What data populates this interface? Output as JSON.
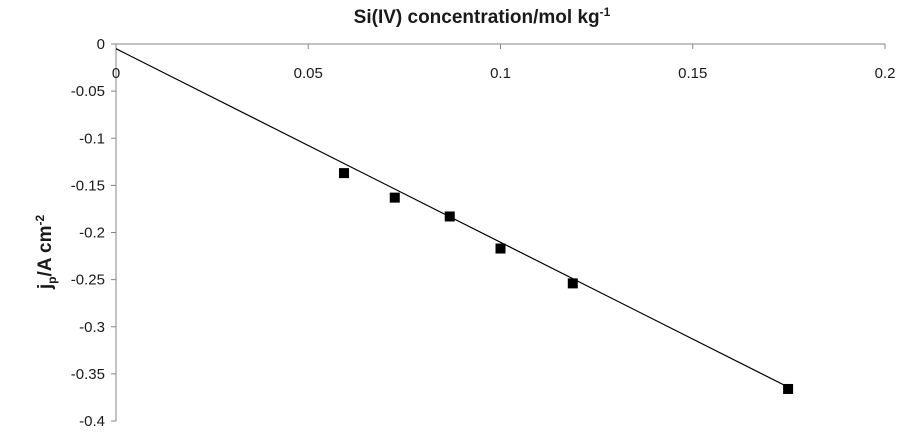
{
  "chart_data": {
    "type": "scatter",
    "title": "",
    "xlabel": {
      "main": "Si(IV) concentration/mol kg",
      "sup": "-1"
    },
    "ylabel": {
      "pre": "j",
      "sub": "p",
      "mid": "/A cm",
      "sup": "-2"
    },
    "xlim": [
      0,
      0.2
    ],
    "ylim": [
      -0.4,
      0
    ],
    "x_axis_position": "top",
    "x_ticks": [
      0,
      0.05,
      0.1,
      0.15,
      0.2
    ],
    "x_tick_labels": [
      "0",
      "0.05",
      "0.1",
      "0.15",
      "0.2"
    ],
    "y_ticks": [
      0,
      -0.05,
      -0.1,
      -0.15,
      -0.2,
      -0.25,
      -0.3,
      -0.35,
      -0.4
    ],
    "y_tick_labels": [
      "0",
      "-0.05",
      "-0.1",
      "-0.15",
      "-0.2",
      "-0.25",
      "-0.3",
      "-0.35",
      "-0.4"
    ],
    "grid": false,
    "legend": "none",
    "series": [
      {
        "marker": "square",
        "x": [
          0.0593,
          0.0725,
          0.0868,
          0.1,
          0.1188,
          0.1748
        ],
        "y": [
          -0.137,
          -0.163,
          -0.183,
          -0.217,
          -0.254,
          -0.366
        ]
      }
    ],
    "trendline": {
      "type": "linear",
      "x": [
        0,
        0.1748
      ],
      "y": [
        -0.005,
        -0.364
      ]
    },
    "colors": {
      "marker": "#000000",
      "line": "#000000",
      "axis": "#868686",
      "text": "#1a1a1a"
    }
  }
}
